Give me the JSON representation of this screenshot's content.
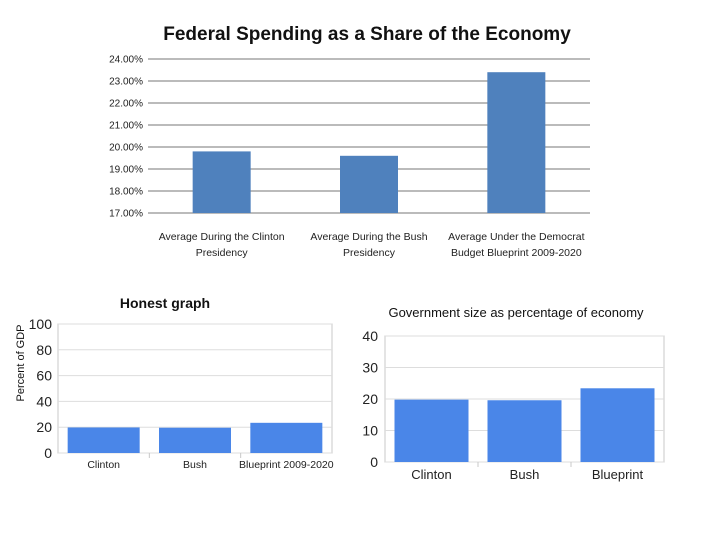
{
  "chart_data": [
    {
      "type": "bar",
      "title": "Federal Spending as a Share of the Economy",
      "ylabel": "",
      "xlabel": "",
      "ylim": [
        17,
        24
      ],
      "yticks": [
        "17.00%",
        "18.00%",
        "19.00%",
        "20.00%",
        "21.00%",
        "22.00%",
        "23.00%",
        "24.00%"
      ],
      "categories": [
        [
          "Average During the Clinton",
          "Presidency"
        ],
        [
          "Average During the Bush",
          "Presidency"
        ],
        [
          "Average Under the Democrat",
          "Budget Blueprint 2009-2020"
        ]
      ],
      "values": [
        19.8,
        19.6,
        23.4
      ],
      "grid": true,
      "bar_color": "#4f81bd"
    },
    {
      "type": "bar",
      "title": "Honest graph",
      "ylabel": "Percent of GDP",
      "xlabel": "",
      "ylim": [
        0,
        100
      ],
      "yticks": [
        "0",
        "20",
        "40",
        "60",
        "80",
        "100"
      ],
      "categories": [
        [
          "Clinton"
        ],
        [
          "Bush"
        ],
        [
          "Blueprint 2009-2020"
        ]
      ],
      "values": [
        19.8,
        19.6,
        23.4
      ],
      "grid": true,
      "bar_color": "#4a86e8"
    },
    {
      "type": "bar",
      "title": "Government size as percentage of economy",
      "ylabel": "",
      "xlabel": "",
      "ylim": [
        0,
        40
      ],
      "yticks": [
        "0",
        "10",
        "20",
        "30",
        "40"
      ],
      "categories": [
        [
          "Clinton"
        ],
        [
          "Bush"
        ],
        [
          "Blueprint"
        ]
      ],
      "values": [
        19.8,
        19.6,
        23.4
      ],
      "grid": true,
      "bar_color": "#4a86e8"
    }
  ]
}
